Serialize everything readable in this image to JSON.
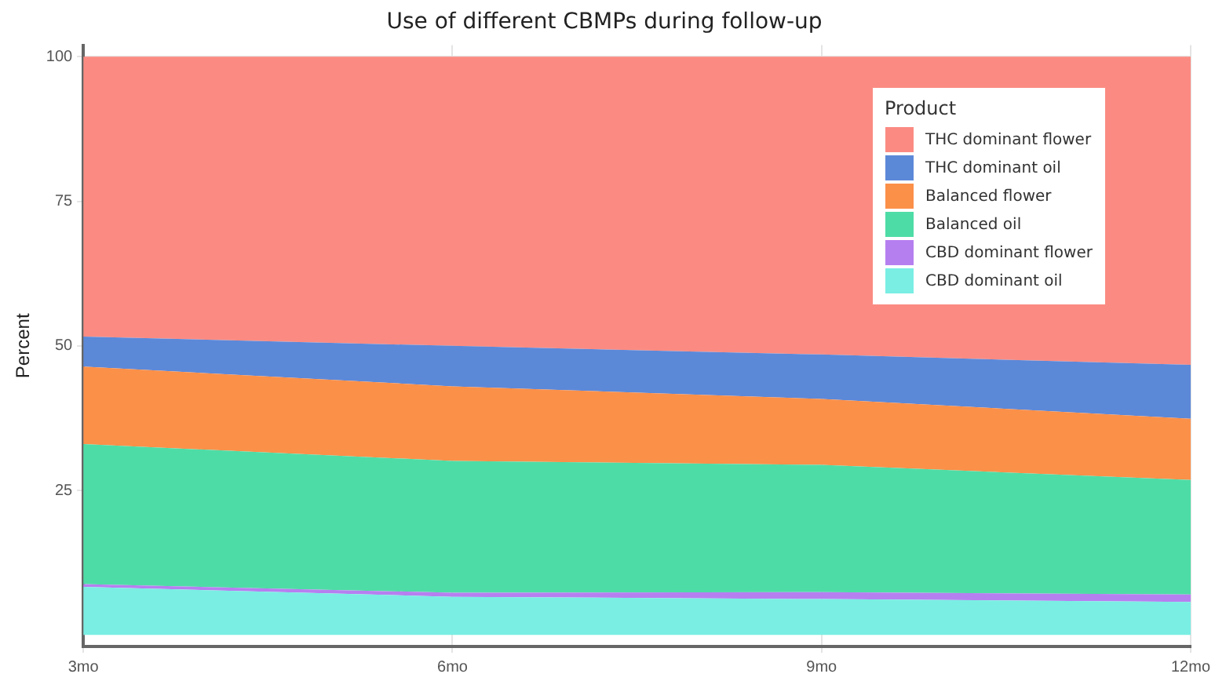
{
  "chart_data": {
    "type": "area",
    "title": "Use of different CBMPs during follow-up",
    "ylabel": "Percent",
    "legend_title": "Product",
    "categories": [
      "3mo",
      "6mo",
      "9mo",
      "12mo"
    ],
    "stacked": true,
    "series": [
      {
        "name": "CBD dominant oil",
        "color": "#7aeee3",
        "values": [
          8.3,
          6.6,
          6.2,
          5.7
        ]
      },
      {
        "name": "CBD dominant flower",
        "color": "#b67ff0",
        "values": [
          0.5,
          0.7,
          1.2,
          1.3
        ]
      },
      {
        "name": "Balanced oil",
        "color": "#4edca6",
        "values": [
          24.2,
          22.8,
          22.0,
          19.8
        ]
      },
      {
        "name": "Balanced flower",
        "color": "#fb9049",
        "values": [
          13.4,
          12.9,
          11.4,
          10.6
        ]
      },
      {
        "name": "THC dominant oil",
        "color": "#5c88d8",
        "values": [
          5.2,
          7.0,
          7.7,
          9.3
        ]
      },
      {
        "name": "THC dominant flower",
        "color": "#fb8b82",
        "values": [
          48.4,
          50.0,
          51.5,
          53.3
        ]
      }
    ],
    "ylim": [
      -2,
      102
    ],
    "yticks": [
      25,
      50,
      75,
      100
    ],
    "grid": true,
    "legend": "top right",
    "marker": "none"
  }
}
